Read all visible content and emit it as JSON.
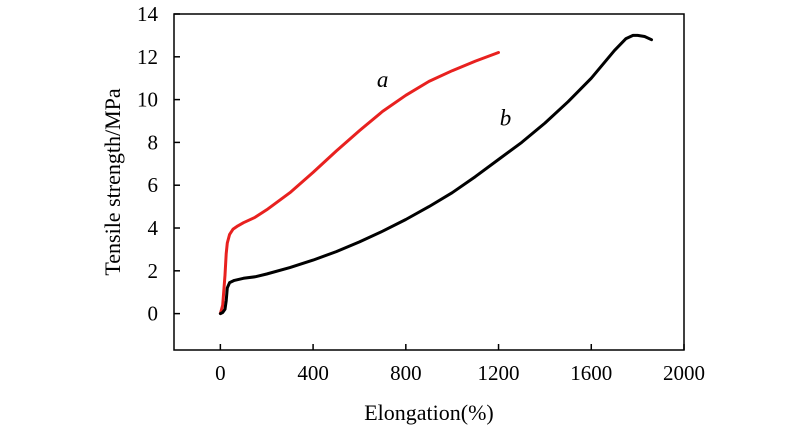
{
  "chart_data": {
    "type": "line",
    "xlabel": "Elongation(%)",
    "ylabel": "Tensile strength/MPa",
    "xlim": [
      -200,
      2000
    ],
    "ylim": [
      -1.7,
      14
    ],
    "xticks": [
      0,
      400,
      800,
      1200,
      1600,
      2000
    ],
    "yticks": [
      0,
      2,
      4,
      6,
      8,
      10,
      12,
      14
    ],
    "grid": false,
    "legend": "none",
    "series": [
      {
        "name": "a",
        "color": "#e8211f",
        "x": [
          0,
          10,
          20,
          25,
          30,
          40,
          55,
          75,
          100,
          150,
          200,
          300,
          400,
          500,
          600,
          700,
          800,
          900,
          1000,
          1100,
          1200
        ],
        "y": [
          0.0,
          0.4,
          1.8,
          2.8,
          3.3,
          3.7,
          3.95,
          4.1,
          4.25,
          4.5,
          4.85,
          5.65,
          6.6,
          7.6,
          8.55,
          9.45,
          10.2,
          10.85,
          11.35,
          11.8,
          12.2
        ]
      },
      {
        "name": "b",
        "color": "#000000",
        "x": [
          0,
          10,
          20,
          25,
          30,
          40,
          60,
          100,
          150,
          200,
          300,
          400,
          500,
          600,
          700,
          800,
          900,
          1000,
          1100,
          1200,
          1300,
          1400,
          1500,
          1600,
          1700,
          1750,
          1780,
          1800,
          1830,
          1860
        ],
        "y": [
          0.0,
          0.05,
          0.2,
          0.6,
          1.2,
          1.45,
          1.55,
          1.65,
          1.72,
          1.85,
          2.15,
          2.5,
          2.9,
          3.35,
          3.85,
          4.4,
          5.0,
          5.65,
          6.4,
          7.2,
          8.0,
          8.9,
          9.9,
          11.0,
          12.3,
          12.85,
          13.0,
          13.0,
          12.95,
          12.8
        ]
      }
    ],
    "annotations": [
      {
        "text": "a",
        "x": 700,
        "y": 10.6
      },
      {
        "text": "b",
        "x": 1230,
        "y": 8.8
      }
    ]
  }
}
